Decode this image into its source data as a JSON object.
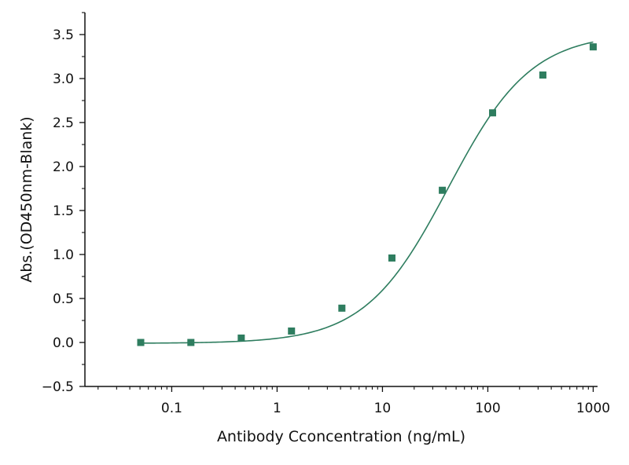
{
  "chart_data": {
    "type": "scatter",
    "title": "",
    "xlabel": "Antibody Cconcentration (ng/mL)",
    "ylabel": "Abs.(OD450nm-Blank)",
    "x_scale": "log",
    "xlim": [
      0.015,
      1100
    ],
    "ylim": [
      -0.5,
      3.75
    ],
    "x_ticks": [
      {
        "value": 0.1,
        "label": "0.1"
      },
      {
        "value": 1,
        "label": "1"
      },
      {
        "value": 10,
        "label": "10"
      },
      {
        "value": 100,
        "label": "100"
      },
      {
        "value": 1000,
        "label": "1000"
      }
    ],
    "y_ticks": [
      {
        "value": -0.5,
        "label": "−0.5"
      },
      {
        "value": 0.0,
        "label": "0.0"
      },
      {
        "value": 0.5,
        "label": "0.5"
      },
      {
        "value": 1.0,
        "label": "1.0"
      },
      {
        "value": 1.5,
        "label": "1.5"
      },
      {
        "value": 2.0,
        "label": "2.0"
      },
      {
        "value": 2.5,
        "label": "2.5"
      },
      {
        "value": 3.0,
        "label": "3.0"
      },
      {
        "value": 3.5,
        "label": "3.5"
      }
    ],
    "grid": false,
    "legend": "none",
    "color": "#2e7d5f",
    "series": [
      {
        "marker": "square",
        "x": [
          0.0508,
          0.152,
          0.457,
          1.37,
          4.12,
          12.3,
          37.0,
          111,
          333,
          1000
        ],
        "y": [
          0.0,
          0.0,
          0.05,
          0.13,
          0.39,
          0.96,
          1.73,
          2.61,
          3.04,
          3.36
        ]
      }
    ],
    "fit_curve": {
      "model": "4PL",
      "bottom": -0.01,
      "top": 3.52,
      "ec50": 42,
      "hill": 1.1
    }
  }
}
